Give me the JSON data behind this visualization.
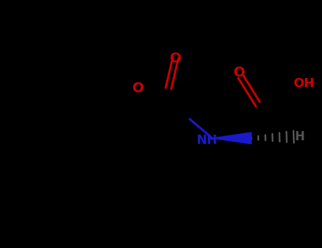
{
  "bg_color": "#000000",
  "bond_color": "#000000",
  "red_color": "#cc0000",
  "blue_color": "#1a1acc",
  "dark_gray": "#555555",
  "line_width": 2.2,
  "figsize": [
    4.55,
    3.5
  ],
  "dpi": 100,
  "xlim": [
    0,
    455
  ],
  "ylim": [
    0,
    350
  ]
}
